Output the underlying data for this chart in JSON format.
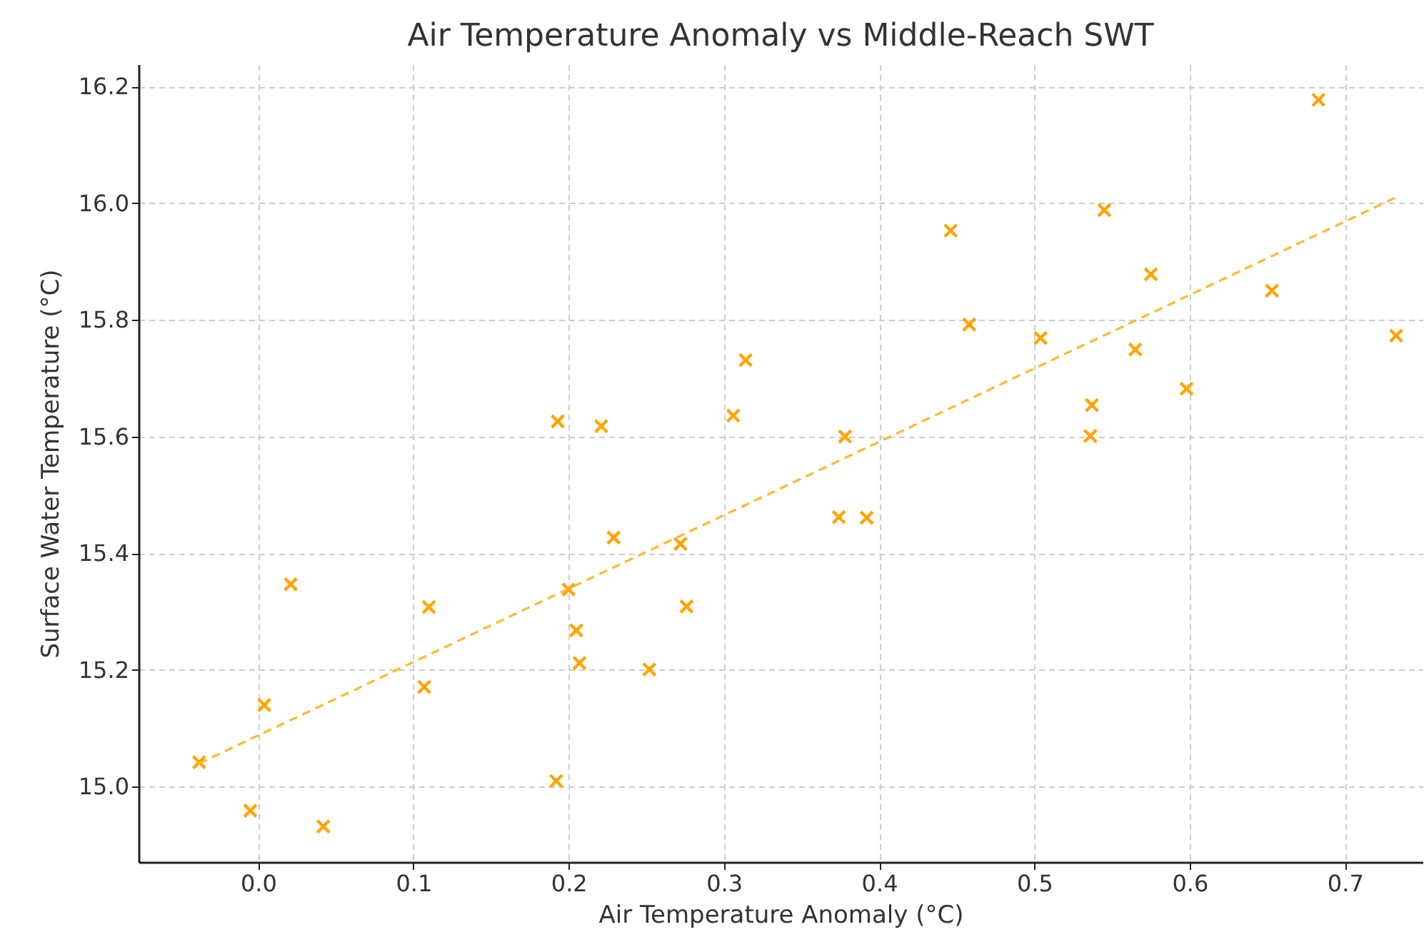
{
  "chart_data": {
    "type": "scatter",
    "title": "Air Temperature Anomaly vs Middle-Reach SWT",
    "xlabel": "Air Temperature Anomaly (°C)",
    "ylabel": "Surface Water Temperature (°C)",
    "xlim": [
      -0.077,
      0.75
    ],
    "ylim": [
      14.871,
      16.238
    ],
    "xticks": [
      {
        "value": 0,
        "label": "0.0"
      },
      0.1,
      0.2,
      0.3,
      0.4,
      0.5,
      0.6,
      0.7
    ],
    "yticks": [
      {
        "value": 15,
        "label": "15.0"
      },
      15.2,
      15.4,
      15.6,
      15.8,
      {
        "value": 16,
        "label": "16.0"
      },
      16.2
    ],
    "grid": true,
    "legend": false,
    "series": [
      {
        "type": "scatter",
        "marker": "cross",
        "color": "#ffa500",
        "x": [
          -0.038,
          -0.005,
          0.004,
          0.021,
          0.042,
          0.107,
          0.11,
          0.192,
          0.193,
          0.2,
          0.205,
          0.207,
          0.221,
          0.229,
          0.252,
          0.272,
          0.276,
          0.306,
          0.314,
          0.374,
          0.378,
          0.392,
          0.446,
          0.458,
          0.504,
          0.545,
          0.537,
          0.536,
          0.575,
          0.565,
          0.598,
          0.653,
          0.683,
          0.733
        ],
        "values": [
          15.042,
          14.959,
          15.14,
          15.347,
          14.932,
          15.171,
          15.308,
          15.01,
          15.626,
          15.338,
          15.268,
          15.212,
          15.618,
          15.427,
          15.201,
          15.416,
          15.309,
          15.636,
          15.731,
          15.462,
          15.6,
          15.461,
          15.953,
          15.792,
          15.769,
          15.988,
          15.654,
          15.601,
          15.878,
          15.749,
          15.682,
          15.85,
          16.177,
          15.773
        ]
      },
      {
        "type": "line",
        "line_style": "dashed",
        "color": "#ffb830",
        "x": [
          -0.038,
          0.733
        ],
        "values": [
          15.04,
          16.01
        ]
      }
    ]
  }
}
